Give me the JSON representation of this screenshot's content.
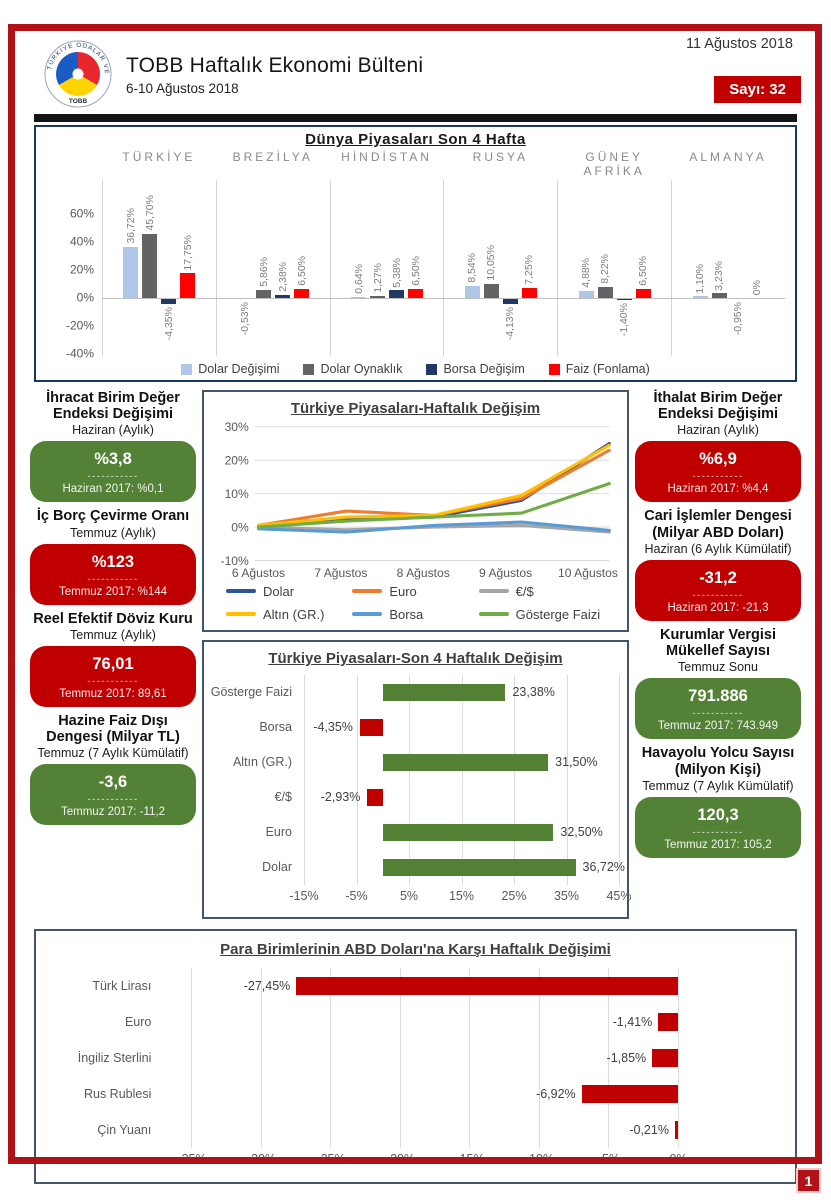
{
  "header": {
    "date_top": "11 Ağustos 2018",
    "title": "TOBB Haftalık Ekonomi Bülteni",
    "subtitle": "6-10 Ağustos 2018",
    "issue_label": "Sayı: 32",
    "logo_text": "TOBB",
    "logo_ring_text": "TÜRKİYE ODALAR VE BORSALAR BİRLİĞİ"
  },
  "colors": {
    "frame_red": "#b01218",
    "kpi_green": "#538135",
    "kpi_red": "#c00000",
    "hbar_green": "#548235",
    "hbar_red": "#c00000"
  },
  "chart_data": [
    {
      "type": "bar",
      "title": "Dünya Piyasaları Son 4 Hafta",
      "groups": [
        "TÜRKİYE",
        "BREZİLYA",
        "HİNDİSTAN",
        "RUSYA",
        "GÜNEY AFRİKA",
        "ALMANYA"
      ],
      "series": [
        {
          "name": "Dolar Değişimi",
          "color": "#aec6e8",
          "values": [
            36.72,
            -0.53,
            0.64,
            8.54,
            4.88,
            1.1
          ],
          "labels": [
            "36,72%",
            "-0,53%",
            "0,64%",
            "8,54%",
            "4,88%",
            "1,10%"
          ]
        },
        {
          "name": "Dolar Oynaklık",
          "color": "#636363",
          "values": [
            45.7,
            5.86,
            1.27,
            10.05,
            8.22,
            3.23
          ],
          "labels": [
            "45,70%",
            "5,86%",
            "1,27%",
            "10,05%",
            "8,22%",
            "3,23%"
          ]
        },
        {
          "name": "Borsa Değişim",
          "color": "#1f3864",
          "values": [
            -4.35,
            2.38,
            5.38,
            -4.13,
            -1.4,
            -0.95
          ],
          "labels": [
            "-4,35%",
            "2,38%",
            "5,38%",
            "-4,13%",
            "-1,40%",
            "-0,95%"
          ]
        },
        {
          "name": "Faiz (Fonlama)",
          "color": "#ff0000",
          "values": [
            17.75,
            6.5,
            6.5,
            7.25,
            6.5,
            0
          ],
          "labels": [
            "17,75%",
            "6,50%",
            "6,50%",
            "7,25%",
            "6,50%",
            "0%"
          ]
        }
      ],
      "ylim": [
        -40,
        60
      ],
      "yticks": [
        {
          "v": 60,
          "label": "60%"
        },
        {
          "v": 40,
          "label": "40%"
        },
        {
          "v": 20,
          "label": "20%"
        },
        {
          "v": 0,
          "label": "0%"
        },
        {
          "v": -20,
          "label": "-20%"
        },
        {
          "v": -40,
          "label": "-40%"
        }
      ],
      "legend_position": "bottom"
    },
    {
      "type": "line",
      "title": "Türkiye Piyasaları-Haftalık Değişim",
      "x": [
        "6 Ağustos",
        "7 Ağustos",
        "8 Ağustos",
        "9 Ağustos",
        "10 Ağustos"
      ],
      "series": [
        {
          "name": "Dolar",
          "color": "#2e5597",
          "values": [
            0,
            2.5,
            3,
            8,
            25
          ]
        },
        {
          "name": "Euro",
          "color": "#ed7d31",
          "values": [
            0.5,
            4.8,
            3.5,
            8.5,
            23
          ]
        },
        {
          "name": "€/$",
          "color": "#a6a6a6",
          "values": [
            0,
            -0.8,
            0,
            0.5,
            -1.5
          ]
        },
        {
          "name": "Altın (GR.)",
          "color": "#ffc000",
          "values": [
            0.5,
            3,
            3.5,
            9.5,
            24.5
          ]
        },
        {
          "name": "Borsa",
          "color": "#5b9bd5",
          "values": [
            -0.5,
            -1.5,
            0.5,
            1.5,
            -1
          ]
        },
        {
          "name": "Gösterge Faizi",
          "color": "#70ad47",
          "values": [
            0,
            1.8,
            3,
            4.2,
            13
          ]
        }
      ],
      "ylim": [
        -10,
        30
      ],
      "yticks": [
        {
          "v": 30,
          "label": "30%"
        },
        {
          "v": 20,
          "label": "20%"
        },
        {
          "v": 10,
          "label": "10%"
        },
        {
          "v": 0,
          "label": "0%"
        },
        {
          "v": -10,
          "label": "-10%"
        }
      ],
      "legend_position": "bottom"
    },
    {
      "type": "bar-horizontal",
      "title": "Türkiye Piyasaları-Son 4 Haftalık Değişim",
      "categories": [
        "Gösterge Faizi",
        "Borsa",
        "Altın (GR.)",
        "€/$",
        "Euro",
        "Dolar"
      ],
      "values": [
        23.38,
        -4.35,
        31.5,
        -2.93,
        32.5,
        36.72
      ],
      "labels": [
        "23,38%",
        "-4,35%",
        "31,50%",
        "-2,93%",
        "32,50%",
        "36,72%"
      ],
      "xlim": [
        -15,
        45
      ],
      "xticks": [
        {
          "v": -15,
          "label": "-15%"
        },
        {
          "v": -5,
          "label": "-5%"
        },
        {
          "v": 5,
          "label": "5%"
        },
        {
          "v": 15,
          "label": "15%"
        },
        {
          "v": 25,
          "label": "25%"
        },
        {
          "v": 35,
          "label": "35%"
        },
        {
          "v": 45,
          "label": "45%"
        }
      ]
    },
    {
      "type": "bar-horizontal",
      "title": "Para Birimlerinin ABD Doları'na Karşı Haftalık Değişimi",
      "categories": [
        "Türk Lirası",
        "Euro",
        "İngiliz Sterlini",
        "Rus Rublesi",
        "Çin Yuanı"
      ],
      "values": [
        -27.45,
        -1.41,
        -1.85,
        -6.92,
        -0.21
      ],
      "labels": [
        "-27,45%",
        "-1,41%",
        "-1,85%",
        "-6,92%",
        "-0,21%"
      ],
      "xlim": [
        -35,
        0
      ],
      "xticks": [
        {
          "v": -35,
          "label": "-35%"
        },
        {
          "v": -30,
          "label": "-30%"
        },
        {
          "v": -25,
          "label": "-25%"
        },
        {
          "v": -20,
          "label": "-20%"
        },
        {
          "v": -15,
          "label": "-15%"
        },
        {
          "v": -10,
          "label": "-10%"
        },
        {
          "v": -5,
          "label": "-5%"
        },
        {
          "v": 0,
          "label": "0%"
        }
      ]
    }
  ],
  "kpis": {
    "dash": "-----------",
    "left": [
      {
        "title": "İhracat Birim Değer Endeksi Değişimi",
        "subtitle": "Haziran (Aylık)",
        "value": "%3,8",
        "prev": "Haziran 2017: %0,1",
        "color": "#538135"
      },
      {
        "title": "İç Borç Çevirme Oranı",
        "subtitle": "Temmuz (Aylık)",
        "value": "%123",
        "prev": "Temmuz 2017: %144",
        "color": "#c00000"
      },
      {
        "title": "Reel Efektif Döviz Kuru",
        "subtitle": "Temmuz (Aylık)",
        "value": "76,01",
        "prev": "Temmuz 2017: 89,61",
        "color": "#c00000"
      },
      {
        "title": "Hazine Faiz Dışı Dengesi (Milyar TL)",
        "subtitle": "Temmuz (7 Aylık Kümülatif)",
        "value": "-3,6",
        "prev": "Temmuz 2017: -11,2",
        "color": "#538135"
      }
    ],
    "right": [
      {
        "title": "İthalat Birim Değer Endeksi Değişimi",
        "subtitle": "Haziran (Aylık)",
        "value": "%6,9",
        "prev": "Haziran 2017: %4,4",
        "color": "#c00000"
      },
      {
        "title": "Cari İşlemler Dengesi (Milyar ABD Doları)",
        "subtitle": "Haziran (6 Aylık Kümülatif)",
        "value": "-31,2",
        "prev": "Haziran 2017: -21,3",
        "color": "#c00000"
      },
      {
        "title": "Kurumlar Vergisi Mükellef Sayısı",
        "subtitle": "Temmuz Sonu",
        "value": "791.886",
        "prev": "Temmuz 2017: 743.949",
        "color": "#538135"
      },
      {
        "title": "Havayolu Yolcu Sayısı (Milyon Kişi)",
        "subtitle": "Temmuz (7 Aylık Kümülatif)",
        "value": "120,3",
        "prev": "Temmuz 2017: 105,2",
        "color": "#538135"
      }
    ]
  },
  "footer": {
    "page": "1"
  }
}
